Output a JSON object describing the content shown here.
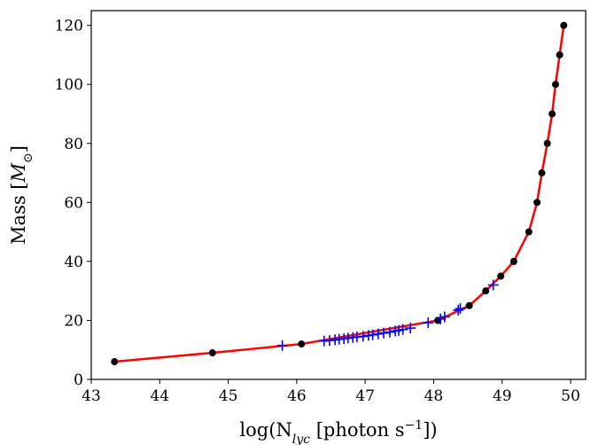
{
  "chart_data": {
    "type": "line",
    "xlabel": [
      "log(N",
      "lyc",
      " [photon s",
      "−1",
      "])"
    ],
    "ylabel": [
      "Mass [",
      "M",
      "⊙",
      "]"
    ],
    "xlim": [
      43,
      50.22
    ],
    "ylim": [
      0,
      125
    ],
    "xticks": [
      43,
      44,
      45,
      46,
      47,
      48,
      49,
      50
    ],
    "yticks": [
      0,
      20,
      40,
      60,
      80,
      100,
      120
    ],
    "grid": false,
    "series": [
      {
        "x": [
          43.34,
          44.77,
          46.07,
          48.06,
          48.52,
          48.76,
          48.98,
          49.17,
          49.39,
          49.51,
          49.58,
          49.66,
          49.73,
          49.78,
          49.84,
          49.9
        ],
        "values": [
          6,
          9,
          12,
          20,
          25,
          30,
          35,
          40,
          50,
          60,
          70,
          80,
          90,
          100,
          110,
          120
        ],
        "color": "#ff0000",
        "marker": "o",
        "marker_color": "#000000",
        "line": true
      },
      {
        "x": [
          45.79,
          46.4,
          46.48,
          46.56,
          46.62,
          46.69,
          46.75,
          46.82,
          46.88,
          46.97,
          47.05,
          47.11,
          47.19,
          47.27,
          47.36,
          47.44,
          47.49,
          47.55,
          47.66,
          47.92,
          48.1,
          48.16,
          48.36,
          48.39,
          48.87
        ],
        "values": [
          11.5,
          13.0,
          13.2,
          13.4,
          13.6,
          13.8,
          14.0,
          14.2,
          14.4,
          14.6,
          14.9,
          15.1,
          15.4,
          15.7,
          16.0,
          16.4,
          16.6,
          16.9,
          17.4,
          19.2,
          20.5,
          21.2,
          23.5,
          24.0,
          32.0
        ],
        "color": "#0000ff",
        "marker": "+",
        "line": false
      }
    ]
  }
}
